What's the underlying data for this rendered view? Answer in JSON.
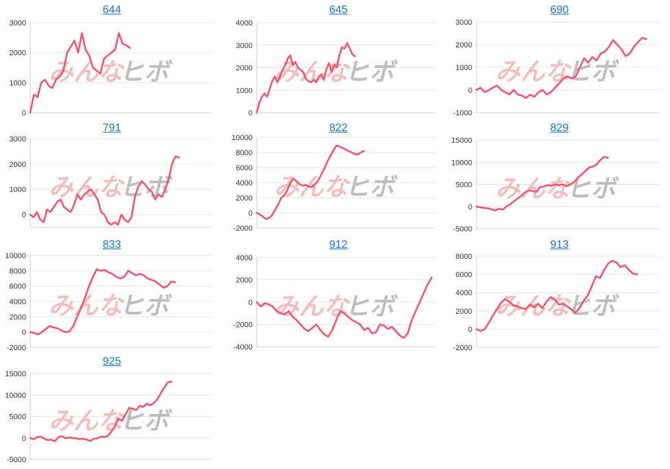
{
  "colors": {
    "series": "#f0566e",
    "link": "#1a73c9",
    "watermark_left": "#efb4b4",
    "watermark_right": "#b3b3b3"
  },
  "watermark": {
    "left": "みんな",
    "right": "ヒボ"
  },
  "chart_data": [
    {
      "type": "line",
      "title": "644",
      "yticks": [
        "0",
        "1000",
        "2000",
        "3000"
      ],
      "ylim": [
        0,
        3000
      ],
      "grid": true,
      "values": [
        0,
        600,
        520,
        1000,
        1100,
        900,
        820,
        1100,
        1200,
        1400,
        2000,
        2200,
        2400,
        2000,
        2650,
        2100,
        1900,
        1500,
        1400,
        1300,
        1800,
        1900,
        2000,
        2100,
        2650,
        2300,
        2250,
        2150
      ]
    },
    {
      "type": "line",
      "title": "645",
      "yticks": [
        "0",
        "1000",
        "2000",
        "3000",
        "4000"
      ],
      "ylim": [
        0,
        4000
      ],
      "grid": true,
      "values": [
        0,
        450,
        700,
        850,
        700,
        1050,
        1400,
        1600,
        1350,
        1600,
        1900,
        2100,
        2400,
        2550,
        2100,
        2250,
        2000,
        1900,
        1800,
        1500,
        1400,
        1350,
        1450,
        1350,
        1600,
        1700,
        1450,
        1950,
        2200,
        1800,
        2150,
        2000,
        2550,
        2900,
        2850,
        3100,
        2850,
        2600,
        2500
      ]
    },
    {
      "type": "line",
      "title": "690",
      "yticks": [
        "-1000",
        "0",
        "1000",
        "2000",
        "3000"
      ],
      "ylim": [
        -1000,
        3000
      ],
      "grid": true,
      "values": [
        0,
        100,
        -100,
        0,
        100,
        200,
        0,
        -100,
        -200,
        0,
        -200,
        -250,
        -350,
        -200,
        -300,
        -100,
        0,
        -200,
        -100,
        100,
        300,
        500,
        600,
        500,
        600,
        1000,
        1400,
        1200,
        1450,
        1300,
        1600,
        1700,
        1900,
        2200,
        2000,
        1800,
        1500,
        1600,
        1900,
        2100,
        2300,
        2250
      ]
    },
    {
      "type": "line",
      "title": "791",
      "yticks": [
        "0",
        "1000",
        "2000",
        "3000"
      ],
      "ylim": [
        -500,
        3000
      ],
      "grid": true,
      "values": [
        0,
        -100,
        100,
        -200,
        -300,
        200,
        100,
        300,
        500,
        600,
        300,
        200,
        100,
        400,
        800,
        600,
        800,
        900,
        1000,
        800,
        600,
        100,
        0,
        -300,
        -400,
        -300,
        -400,
        0,
        -200,
        -300,
        -100,
        700,
        1100,
        1300,
        1200,
        1000,
        900,
        600,
        800,
        700,
        1000,
        1400,
        2000,
        2300,
        2250
      ]
    },
    {
      "type": "line",
      "title": "822",
      "yticks": [
        "-2000",
        "0",
        "2000",
        "4000",
        "6000",
        "8000",
        "10000"
      ],
      "ylim": [
        -2000,
        10000
      ],
      "grid": true,
      "values": [
        0,
        -200,
        -500,
        -800,
        -700,
        -300,
        400,
        1100,
        2000,
        2300,
        3000,
        4000,
        4500,
        4200,
        3800,
        3600,
        3700,
        3500,
        3400,
        3800,
        4200,
        5000,
        5800,
        6700,
        7500,
        8200,
        8900,
        8800,
        8600,
        8400,
        8200,
        8000,
        7800,
        7700,
        8000,
        8200
      ]
    },
    {
      "type": "line",
      "title": "829",
      "yticks": [
        "-5000",
        "0",
        "5000",
        "10000",
        "15000"
      ],
      "ylim": [
        -5000,
        15000
      ],
      "grid": true,
      "values": [
        0,
        -200,
        -300,
        -400,
        -600,
        -900,
        -500,
        -700,
        0,
        500,
        1200,
        1800,
        2500,
        3200,
        3600,
        3500,
        3300,
        4400,
        4500,
        4800,
        4700,
        5000,
        4800,
        5000,
        4600,
        5000,
        5500,
        6500,
        7200,
        8000,
        8800,
        9000,
        9500,
        10500,
        11200,
        11000
      ]
    },
    {
      "type": "line",
      "title": "833",
      "yticks": [
        "-2000",
        "0",
        "2000",
        "4000",
        "6000",
        "8000",
        "10000"
      ],
      "ylim": [
        -2000,
        10000
      ],
      "grid": true,
      "values": [
        0,
        -100,
        -300,
        0,
        400,
        800,
        600,
        500,
        200,
        0,
        100,
        800,
        2000,
        3200,
        4500,
        6000,
        7200,
        8200,
        8000,
        8100,
        7800,
        7600,
        7200,
        7000,
        7200,
        8000,
        7700,
        7400,
        7600,
        7400,
        7000,
        6800,
        6600,
        6200,
        5800,
        6000,
        6600,
        6500
      ]
    },
    {
      "type": "line",
      "title": "912",
      "yticks": [
        "-4000",
        "-2000",
        "0",
        "2000",
        "4000"
      ],
      "ylim": [
        -4000,
        4000
      ],
      "grid": true,
      "values": [
        0,
        -400,
        -100,
        -200,
        -400,
        -800,
        -1000,
        -1100,
        -800,
        -1300,
        -1600,
        -2000,
        -2400,
        -2600,
        -2300,
        -2000,
        -2500,
        -2900,
        -3100,
        -2500,
        -1600,
        -800,
        -1000,
        -1300,
        -1600,
        -1800,
        -2000,
        -2500,
        -2300,
        -2800,
        -2700,
        -2000,
        -2100,
        -2400,
        -2200,
        -2600,
        -3000,
        -3200,
        -2800,
        -1600,
        -800,
        0,
        800,
        1600,
        2200
      ]
    },
    {
      "type": "line",
      "title": "913",
      "yticks": [
        "-2000",
        "0",
        "2000",
        "4000",
        "6000",
        "8000"
      ],
      "ylim": [
        -2000,
        8000
      ],
      "grid": true,
      "values": [
        0,
        -200,
        0,
        700,
        1500,
        2200,
        2900,
        3300,
        3000,
        2600,
        2500,
        2300,
        2200,
        2700,
        2400,
        2800,
        2300,
        3000,
        3500,
        3300,
        2700,
        2800,
        2500,
        2200,
        1800,
        2300,
        3100,
        3700,
        4700,
        5800,
        5600,
        6500,
        7200,
        7500,
        7300,
        6800,
        7000,
        6500,
        6100,
        6000
      ]
    },
    {
      "type": "line",
      "title": "925",
      "yticks": [
        "-5000",
        "0",
        "5000",
        "10000",
        "15000"
      ],
      "ylim": [
        -5000,
        15000
      ],
      "grid": true,
      "values": [
        0,
        -300,
        200,
        300,
        -200,
        -500,
        -400,
        -800,
        200,
        400,
        -100,
        100,
        0,
        -100,
        -300,
        -200,
        -400,
        -700,
        -200,
        -100,
        300,
        200,
        500,
        1500,
        2800,
        4500,
        4000,
        5500,
        7000,
        6800,
        6500,
        7500,
        7200,
        8000,
        7600,
        8200,
        9000,
        10500,
        11800,
        13000,
        13100
      ]
    }
  ]
}
